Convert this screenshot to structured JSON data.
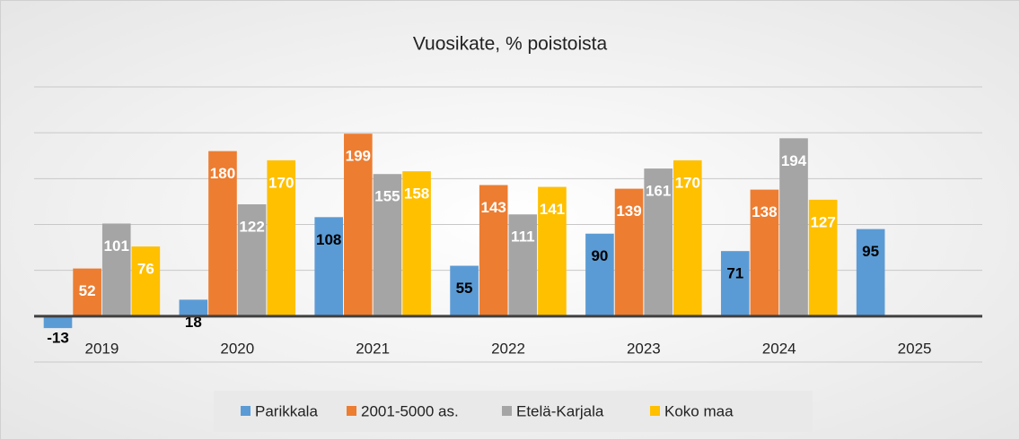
{
  "chart_data": {
    "type": "bar",
    "title": "Vuosikate, % poistoista",
    "categories": [
      "2019",
      "2020",
      "2021",
      "2022",
      "2023",
      "2024",
      "2025"
    ],
    "series": [
      {
        "name": "Parikkala",
        "color": "#5b9bd5",
        "values": [
          -13,
          18,
          108,
          55,
          90,
          71,
          95
        ]
      },
      {
        "name": "2001-5000 as.",
        "color": "#ed7d31",
        "values": [
          52,
          180,
          199,
          143,
          139,
          138,
          null
        ]
      },
      {
        "name": "Etelä-Karjala",
        "color": "#a5a5a5",
        "values": [
          101,
          122,
          155,
          111,
          161,
          194,
          null
        ]
      },
      {
        "name": "Koko maa",
        "color": "#ffc000",
        "values": [
          76,
          170,
          158,
          141,
          170,
          127,
          null
        ]
      }
    ],
    "ylim": [
      -50,
      250
    ],
    "yticks": [
      -50,
      0,
      50,
      100,
      150,
      200,
      250
    ],
    "grid": true,
    "legend": "bottom"
  }
}
